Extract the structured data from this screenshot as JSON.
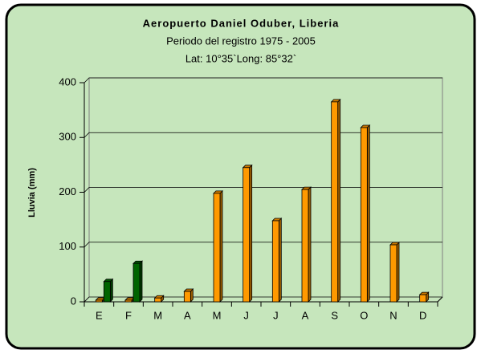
{
  "chart_data": {
    "type": "bar",
    "title": "Aeropuerto Daniel Oduber, Liberia",
    "subtitle": "Periodo del registro 1975 - 2005",
    "annotation": "Lat: 10°35`Long: 85°32`",
    "y_label": "Lluvia (mm)",
    "categories": [
      "E",
      "F",
      "M",
      "A",
      "M",
      "J",
      "J",
      "A",
      "S",
      "O",
      "N",
      "D"
    ],
    "series": [
      {
        "color": "#ff9900",
        "values": [
          3,
          3,
          7,
          19,
          198,
          245,
          148,
          205,
          365,
          318,
          104,
          13
        ]
      },
      {
        "color": "#006400",
        "values": [
          37,
          70,
          null,
          null,
          null,
          null,
          null,
          null,
          null,
          null,
          null,
          null
        ]
      }
    ],
    "ylim": [
      0,
      400
    ],
    "yticks": [
      0,
      100,
      200,
      300,
      400
    ],
    "grid": true
  }
}
